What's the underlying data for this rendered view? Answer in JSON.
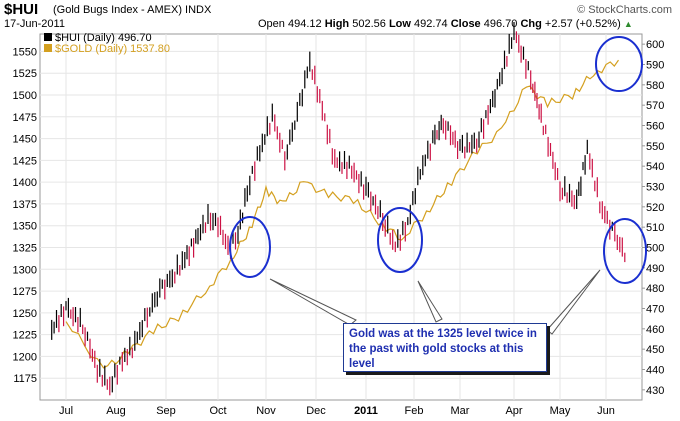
{
  "header": {
    "symbol": "$HUI",
    "name": "(Gold Bugs Index - AMEX) INDX",
    "date": "17-Jun-2011",
    "open_label": "Open",
    "open": "494.12",
    "high_label": "High",
    "high": "502.56",
    "low_label": "Low",
    "low": "492.74",
    "close_label": "Close",
    "close": "496.70",
    "chg_label": "Chg",
    "chg": "+2.57 (+0.52%)",
    "watermark": "© StockCharts.com"
  },
  "colors": {
    "hui_up": "#000000",
    "hui_down": "#cc1144",
    "gold": "#d4a020",
    "circle": "#1a2fd0",
    "note_text": "#1f2fb0"
  },
  "chart_data": {
    "type": "line",
    "legend": [
      {
        "label": "$HUI (Daily) 496.70",
        "color": "#000000"
      },
      {
        "label": "$GOLD (Daily) 1537.80",
        "color": "#d4a020"
      }
    ],
    "x_ticks": [
      "Jul",
      "Aug",
      "Sep",
      "Oct",
      "Nov",
      "Dec",
      "2011",
      "Feb",
      "Mar",
      "Apr",
      "May",
      "Jun"
    ],
    "y_left_ticks": [
      1175,
      1200,
      1225,
      1250,
      1275,
      1300,
      1325,
      1350,
      1375,
      1400,
      1425,
      1450,
      1475,
      1500,
      1525,
      1550
    ],
    "y_right_ticks": [
      430,
      440,
      450,
      460,
      470,
      480,
      490,
      500,
      510,
      520,
      530,
      540,
      550,
      560,
      570,
      580,
      590,
      600
    ],
    "y_left_range": [
      1150,
      1570
    ],
    "y_right_range": [
      425,
      605
    ],
    "grid": true,
    "series": [
      {
        "name": "$HUI (Daily) 496.70",
        "axis": "right",
        "style": "bars",
        "points": [
          [
            "Jul",
            458
          ],
          [
            "Jul",
            470
          ],
          [
            "Jul",
            462
          ],
          [
            "Aug",
            440
          ],
          [
            "Aug",
            432
          ],
          [
            "Aug",
            445
          ],
          [
            "Aug",
            452
          ],
          [
            "Sep",
            468
          ],
          [
            "Sep",
            478
          ],
          [
            "Sep",
            486
          ],
          [
            "Sep",
            494
          ],
          [
            "Oct",
            506
          ],
          [
            "Oct",
            514
          ],
          [
            "Oct",
            512
          ],
          [
            "Oct",
            500
          ],
          [
            "Oct",
            506
          ],
          [
            "Nov",
            528
          ],
          [
            "Nov",
            548
          ],
          [
            "Nov",
            564
          ],
          [
            "Nov",
            545
          ],
          [
            "Dec",
            565
          ],
          [
            "Dec",
            592
          ],
          [
            "Dec",
            568
          ],
          [
            "Dec",
            542
          ],
          [
            "2011",
            540
          ],
          [
            "2011",
            528
          ],
          [
            "2011",
            515
          ],
          [
            "Feb",
            500
          ],
          [
            "Feb",
            512
          ],
          [
            "Feb",
            538
          ],
          [
            "Feb",
            552
          ],
          [
            "Mar",
            562
          ],
          [
            "Mar",
            548
          ],
          [
            "Mar",
            552
          ],
          [
            "Apr",
            578
          ],
          [
            "Apr",
            606
          ],
          [
            "Apr",
            584
          ],
          [
            "May",
            560
          ],
          [
            "May",
            530
          ],
          [
            "May",
            522
          ],
          [
            "Jun",
            548
          ],
          [
            "Jun",
            522
          ],
          [
            "Jun",
            508
          ],
          [
            "Jun",
            497
          ]
        ]
      },
      {
        "name": "$GOLD (Daily) 1537.80",
        "axis": "left",
        "style": "line",
        "points": [
          [
            "Jul",
            1240
          ],
          [
            "Aug",
            1185
          ],
          [
            "Aug",
            1205
          ],
          [
            "Sep",
            1230
          ],
          [
            "Sep",
            1245
          ],
          [
            "Oct",
            1275
          ],
          [
            "Oct",
            1310
          ],
          [
            "Nov",
            1345
          ],
          [
            "Nov",
            1390
          ],
          [
            "Nov",
            1375
          ],
          [
            "Dec",
            1400
          ],
          [
            "Dec",
            1385
          ],
          [
            "2011",
            1380
          ],
          [
            "2011",
            1355
          ],
          [
            "Feb",
            1335
          ],
          [
            "Feb",
            1365
          ],
          [
            "Mar",
            1395
          ],
          [
            "Mar",
            1430
          ],
          [
            "Apr",
            1460
          ],
          [
            "Apr",
            1510
          ],
          [
            "May",
            1490
          ],
          [
            "May",
            1500
          ],
          [
            "Jun",
            1525
          ],
          [
            "Jun",
            1540
          ]
        ]
      }
    ],
    "annotations": [
      {
        "type": "ellipse",
        "at": "Oct",
        "level": 1325
      },
      {
        "type": "ellipse",
        "at": "Feb",
        "level": 1325
      },
      {
        "type": "ellipse",
        "at": "Jun",
        "on": "$GOLD",
        "level": 1535
      },
      {
        "type": "ellipse",
        "at": "Jun",
        "on": "$HUI",
        "level": 500
      }
    ],
    "note": "Gold was at the 1325 level twice in the past with gold stocks at this level"
  }
}
